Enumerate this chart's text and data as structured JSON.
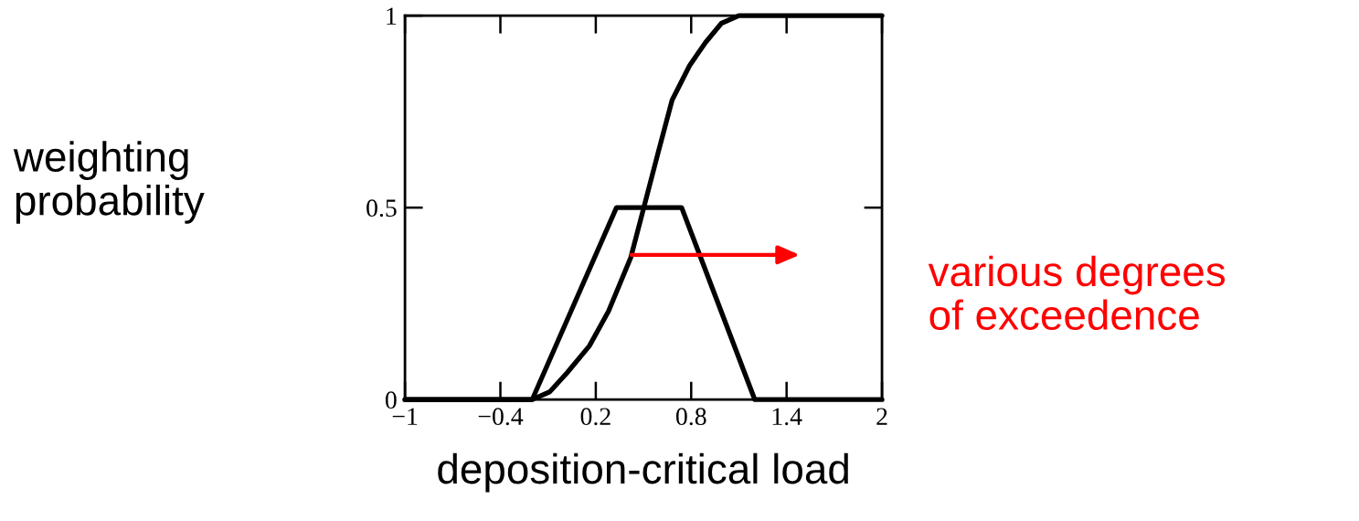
{
  "chart_data": {
    "type": "line",
    "xlabel": "deposition-critical load",
    "ylabel": "weighting\nprobability",
    "annotations": [
      "various degrees\nof exceedence"
    ],
    "series": [
      {
        "color": "#000000",
        "x": [
          -1,
          -0.2,
          0.33,
          0.74,
          1.2,
          2
        ],
        "values": [
          0,
          0,
          0.5,
          0.5,
          0,
          0
        ]
      },
      {
        "color": "#000000",
        "x": [
          -1,
          -0.2,
          -0.09,
          0.02,
          0.16,
          0.28,
          0.42,
          0.59,
          0.68,
          0.79,
          0.89,
          0.99,
          1.1,
          2
        ],
        "values": [
          0,
          0,
          0.02,
          0.07,
          0.14,
          0.23,
          0.37,
          0.64,
          0.78,
          0.87,
          0.93,
          0.98,
          1,
          1
        ]
      }
    ],
    "xlim": [
      -1,
      2
    ],
    "ylim": [
      0,
      1
    ],
    "xticks": [
      {
        "value": -1,
        "label": "−1"
      },
      {
        "value": -0.4,
        "label": "−0.4"
      },
      0.2,
      0.8,
      1.4,
      2
    ],
    "yticks": [
      0,
      0.5,
      1
    ],
    "grid": false,
    "marker": "none",
    "line_style": "solid"
  }
}
